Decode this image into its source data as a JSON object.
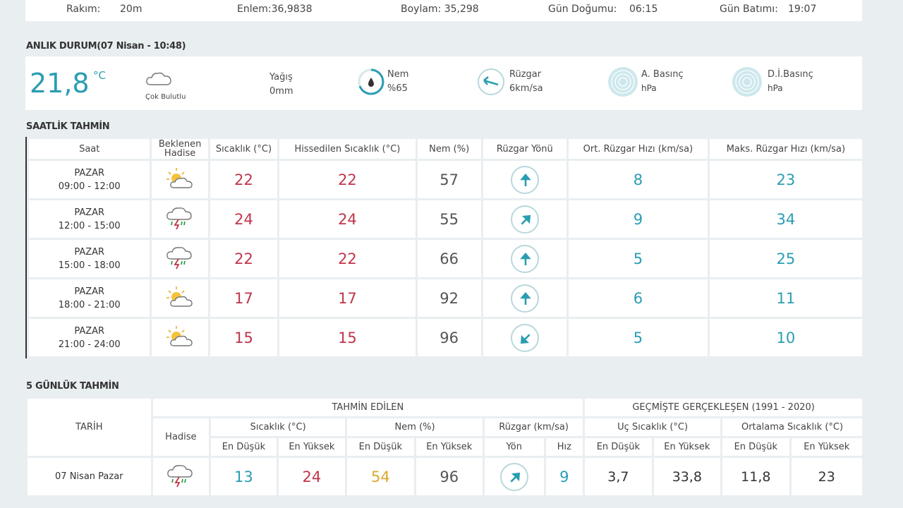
{
  "top": {
    "rakim_label": "Rakım:",
    "rakim_value": "20m",
    "enlem": "Enlem:36,9838",
    "boylam": "Boylam: 35,298",
    "gundogumu_label": "Gün Doğumu:",
    "gundogumu_value": "06:15",
    "gunbatimi_label": "Gün Batımı:",
    "gunbatimi_value": "19:07"
  },
  "current": {
    "title": "ANLIK DURUM(07 Nisan - 10:48)",
    "temp": "21,8",
    "unit": "°C",
    "condition": "Çok Bulutlu",
    "yagis_label": "Yağış",
    "yagis_value": "0mm",
    "nem_label": "Nem",
    "nem_value": "%65",
    "ruzgar_label": "Rüzgar",
    "ruzgar_value": "6km/sa",
    "abasinc_label": "A. Basınç",
    "abasinc_value": "hPa",
    "dibasinc_label": "D.İ.Basınç",
    "dibasinc_value": "hPa"
  },
  "hourly": {
    "title": "SAATLİK TAHMİN",
    "headers": [
      "Saat",
      "Beklenen Hadise",
      "Sıcaklık (°C)",
      "Hissedilen Sıcaklık (°C)",
      "Nem (%)",
      "Rüzgar Yönü",
      "Ort. Rüzgar Hızı (km/sa)",
      "Maks. Rüzgar Hızı (km/sa)"
    ],
    "rows": [
      {
        "day": "PAZAR",
        "time": "09:00 - 12:00",
        "icon": "partly-cloudy-icon",
        "temp": "22",
        "feel": "22",
        "hum": "57",
        "dir": "north",
        "avg": "8",
        "max": "23"
      },
      {
        "day": "PAZAR",
        "time": "12:00 - 15:00",
        "icon": "thunderstorm-icon",
        "temp": "24",
        "feel": "24",
        "hum": "55",
        "dir": "north-east",
        "avg": "9",
        "max": "34"
      },
      {
        "day": "PAZAR",
        "time": "15:00 - 18:00",
        "icon": "thunderstorm-icon",
        "temp": "22",
        "feel": "22",
        "hum": "66",
        "dir": "north",
        "avg": "5",
        "max": "25"
      },
      {
        "day": "PAZAR",
        "time": "18:00 - 21:00",
        "icon": "partly-cloudy-icon",
        "temp": "17",
        "feel": "17",
        "hum": "92",
        "dir": "north",
        "avg": "6",
        "max": "11"
      },
      {
        "day": "PAZAR",
        "time": "21:00 - 24:00",
        "icon": "partly-cloudy-icon",
        "temp": "15",
        "feel": "15",
        "hum": "96",
        "dir": "south-west",
        "avg": "5",
        "max": "10"
      }
    ]
  },
  "daily": {
    "title": "5 GÜNLÜK TAHMİN",
    "tarih": "TARİH",
    "tahmin_edilen": "TAHMİN EDİLEN",
    "gecmiste": "GEÇMİŞTE GERÇEKLEŞEN (1991 - 2020)",
    "hadise": "Hadise",
    "sicaklik": "Sıcaklık (°C)",
    "nem": "Nem (%)",
    "ruzgar": "Rüzgar (km/sa)",
    "uc_sicaklik": "Uç Sıcaklık (°C)",
    "ort_sicaklik": "Ortalama Sıcaklık (°C)",
    "en_dusuk": "En Düşük",
    "en_yuksek": "En Yüksek",
    "yon": "Yön",
    "hiz": "Hız",
    "rows": [
      {
        "date": "07 Nisan Pazar",
        "icon": "thunderstorm-icon",
        "tmin": "13",
        "tmax": "24",
        "nmin": "54",
        "nmax": "96",
        "dir": "north-east",
        "speed": "9",
        "umin": "3,7",
        "umax": "33,8",
        "omin": "11,8",
        "omax": "23"
      }
    ]
  },
  "colors": {
    "accent": "#2a9db2",
    "red": "#c0354a",
    "yellow": "#d9a92f"
  }
}
